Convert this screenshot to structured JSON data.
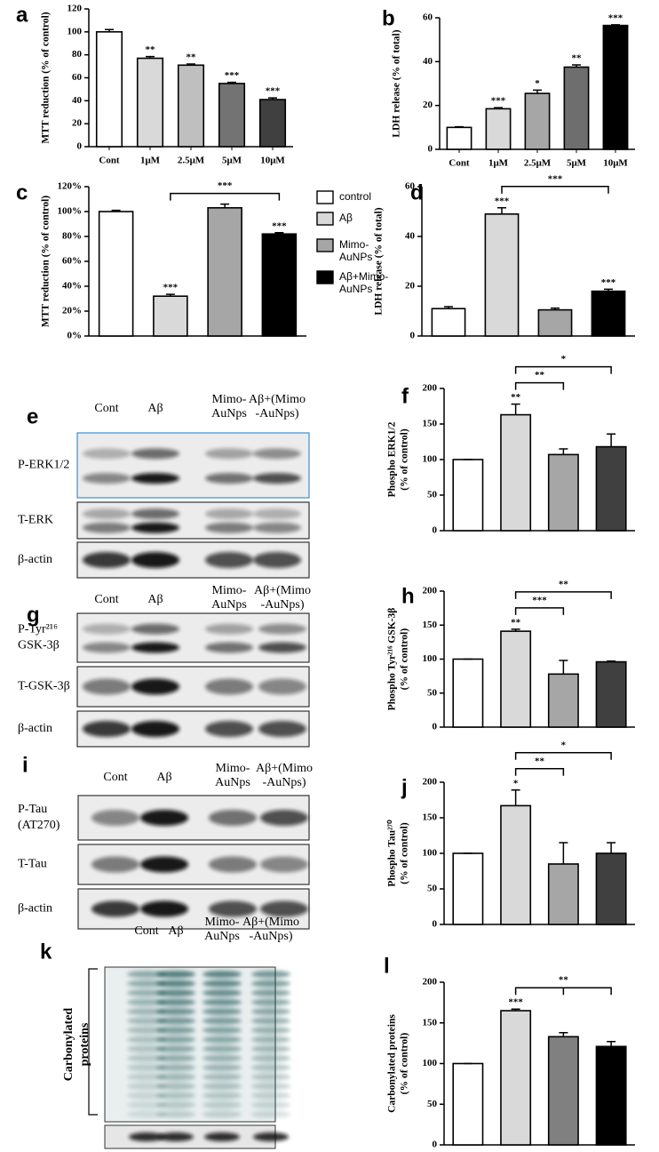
{
  "chart_data": [
    {
      "type": "bar",
      "panel": "a",
      "ylabel": [
        "MTT reduction (% of control)"
      ],
      "categories": [
        "Cont",
        "1μM",
        "2.5μM",
        "5μM",
        "10μM"
      ],
      "values": [
        100,
        77,
        71,
        55,
        41
      ],
      "errors": [
        2,
        1.5,
        1,
        1,
        1.5
      ],
      "colors": [
        "#ffffff",
        "#d9d9d9",
        "#bfbfbf",
        "#737373",
        "#404040"
      ],
      "annotations": [
        null,
        "**",
        "**",
        "***",
        "***"
      ],
      "ylim": [
        0,
        120
      ],
      "yticks": [
        0,
        20,
        40,
        60,
        80,
        100,
        120
      ]
    },
    {
      "type": "bar",
      "panel": "b",
      "ylabel": [
        "LDH release (% of total)"
      ],
      "categories": [
        "Cont",
        "1μM",
        "2.5μM",
        "5μM",
        "10μM"
      ],
      "values": [
        10,
        18.5,
        25.5,
        37.5,
        56.5
      ],
      "errors": [
        0.3,
        0.5,
        1.5,
        1,
        0.3
      ],
      "colors": [
        "#ffffff",
        "#d9d9d9",
        "#a6a6a6",
        "#6e6e6e",
        "#000000"
      ],
      "annotations": [
        null,
        "***",
        "*",
        "**",
        "***"
      ],
      "ylim": [
        0,
        60
      ],
      "yticks": [
        0,
        20,
        40,
        60
      ]
    },
    {
      "type": "bar",
      "panel": "c",
      "ylabel": [
        "MTT reduction (% of control)"
      ],
      "categories": [
        "control",
        "Aβ",
        "Mimo-AuNPs",
        "Aβ+Mimo-AuNPs"
      ],
      "legend": true,
      "values": [
        100,
        32,
        103,
        82
      ],
      "errors": [
        1,
        1.5,
        3,
        1
      ],
      "colors": [
        "#ffffff",
        "#d9d9d9",
        "#a6a6a6",
        "#000000"
      ],
      "annotations": [
        null,
        "***",
        null,
        "***"
      ],
      "brackets": [
        {
          "bars": [
            1,
            3
          ],
          "label": "***"
        }
      ],
      "ylim": [
        0,
        120
      ],
      "yticks": [
        {
          "value": 0,
          "label": "0%"
        },
        {
          "value": 20,
          "label": "20%"
        },
        {
          "value": 40,
          "label": "40%"
        },
        {
          "value": 60,
          "label": "60%"
        },
        {
          "value": 80,
          "label": "80%"
        },
        {
          "value": 100,
          "label": "100%"
        },
        {
          "value": 120,
          "label": "120%"
        }
      ]
    },
    {
      "type": "bar",
      "panel": "d",
      "ylabel": [
        "LDH release (% of total)"
      ],
      "categories": [
        null,
        null,
        null,
        null
      ],
      "values": [
        11,
        49,
        10.5,
        18
      ],
      "errors": [
        0.8,
        2.5,
        0.7,
        0.8
      ],
      "colors": [
        "#ffffff",
        "#d9d9d9",
        "#a6a6a6",
        "#000000"
      ],
      "annotations": [
        null,
        "***",
        null,
        "***"
      ],
      "brackets": [
        {
          "bars": [
            1,
            3
          ],
          "label": "***"
        }
      ],
      "ylim": [
        0,
        60
      ],
      "yticks": [
        0,
        20,
        40,
        60
      ]
    },
    {
      "type": "bar",
      "panel": "f",
      "ylabel": [
        "Phospho ERK1/2",
        "(% of control)"
      ],
      "categories": [
        null,
        null,
        null,
        null
      ],
      "values": [
        100,
        163,
        107,
        118
      ],
      "errors": [
        0,
        15,
        8,
        18
      ],
      "colors": [
        "#ffffff",
        "#d9d9d9",
        "#a6a6a6",
        "#404040"
      ],
      "annotations": [
        null,
        "**",
        null,
        null
      ],
      "brackets": [
        {
          "bars": [
            1,
            2
          ],
          "label": "**"
        },
        {
          "bars": [
            1,
            3
          ],
          "label": "*"
        }
      ],
      "ylim": [
        0,
        200
      ],
      "yticks": [
        0,
        50,
        100,
        150,
        200
      ]
    },
    {
      "type": "bar",
      "panel": "h",
      "ylabel": [
        "Phospho Tyr²¹⁶ GSK-3β",
        "(% of control)"
      ],
      "categories": [
        null,
        null,
        null,
        null
      ],
      "values": [
        100,
        141,
        78,
        96
      ],
      "errors": [
        0,
        3,
        20,
        1
      ],
      "colors": [
        "#ffffff",
        "#d9d9d9",
        "#a6a6a6",
        "#404040"
      ],
      "annotations": [
        null,
        "**",
        null,
        null
      ],
      "brackets": [
        {
          "bars": [
            1,
            2
          ],
          "label": "***"
        },
        {
          "bars": [
            1,
            3
          ],
          "label": "**"
        }
      ],
      "ylim": [
        0,
        200
      ],
      "yticks": [
        0,
        50,
        100,
        150,
        200
      ]
    },
    {
      "type": "bar",
      "panel": "j",
      "ylabel": [
        "Phospho Tau²⁷⁰",
        "(% of control)"
      ],
      "categories": [
        null,
        null,
        null,
        null
      ],
      "values": [
        100,
        167,
        85,
        100
      ],
      "errors": [
        0,
        22,
        30,
        15
      ],
      "colors": [
        "#ffffff",
        "#d9d9d9",
        "#a6a6a6",
        "#404040"
      ],
      "annotations": [
        null,
        "*",
        null,
        null
      ],
      "brackets": [
        {
          "bars": [
            1,
            2
          ],
          "label": "**"
        },
        {
          "bars": [
            1,
            3
          ],
          "label": "*"
        }
      ],
      "ylim": [
        0,
        200
      ],
      "yticks": [
        0,
        50,
        100,
        150,
        200
      ]
    },
    {
      "type": "bar",
      "panel": "l",
      "ylabel": [
        "Carbonylated proteins",
        "(% of control)"
      ],
      "categories": [
        null,
        null,
        null,
        null
      ],
      "values": [
        100,
        165,
        133,
        121
      ],
      "errors": [
        0,
        2,
        5,
        6
      ],
      "colors": [
        "#ffffff",
        "#d9d9d9",
        "#808080",
        "#000000"
      ],
      "annotations": [
        null,
        "***",
        null,
        null
      ],
      "brackets": [
        {
          "bars": [
            1,
            2,
            3
          ],
          "label": "**"
        }
      ],
      "ylim": [
        0,
        200
      ],
      "yticks": [
        0,
        50,
        100,
        150,
        200
      ]
    }
  ],
  "blots": [
    {
      "panel": "e",
      "columns": [
        [
          "Cont"
        ],
        [
          "Aβ"
        ],
        [
          "Mimo-",
          "AuNps"
        ],
        [
          "Aβ+(Mimo",
          "-AuNps)"
        ]
      ],
      "rows": [
        [
          "P-ERK1/2"
        ],
        [
          "T-ERK"
        ],
        [
          "β-actin"
        ]
      ]
    },
    {
      "panel": "g",
      "columns": [
        [
          "Cont"
        ],
        [
          "Aβ"
        ],
        [
          "Mimo-",
          "AuNps"
        ],
        [
          "Aβ+(Mimo",
          "-AuNps)"
        ]
      ],
      "rows": [
        [
          "P-Tyr²¹⁶",
          "GSK-3β"
        ],
        [
          "T-GSK-3β"
        ],
        [
          "β-actin"
        ]
      ]
    },
    {
      "panel": "i",
      "columns": [
        [
          "Cont"
        ],
        [
          "Aβ"
        ],
        [
          "Mimo-",
          "AuNps"
        ],
        [
          "Aβ+(Mimo",
          "-AuNps)"
        ]
      ],
      "rows": [
        [
          "P-Tau",
          "(AT270)"
        ],
        [
          "T-Tau"
        ],
        [
          "β-actin"
        ]
      ]
    },
    {
      "panel": "k",
      "columns": [
        [
          "Cont"
        ],
        [
          "Aβ"
        ],
        [
          "Mimo-",
          "AuNps"
        ],
        [
          "Aβ+(Mimo",
          "-AuNps)"
        ]
      ],
      "label": [
        "Carbonylated",
        "proteins"
      ]
    }
  ]
}
